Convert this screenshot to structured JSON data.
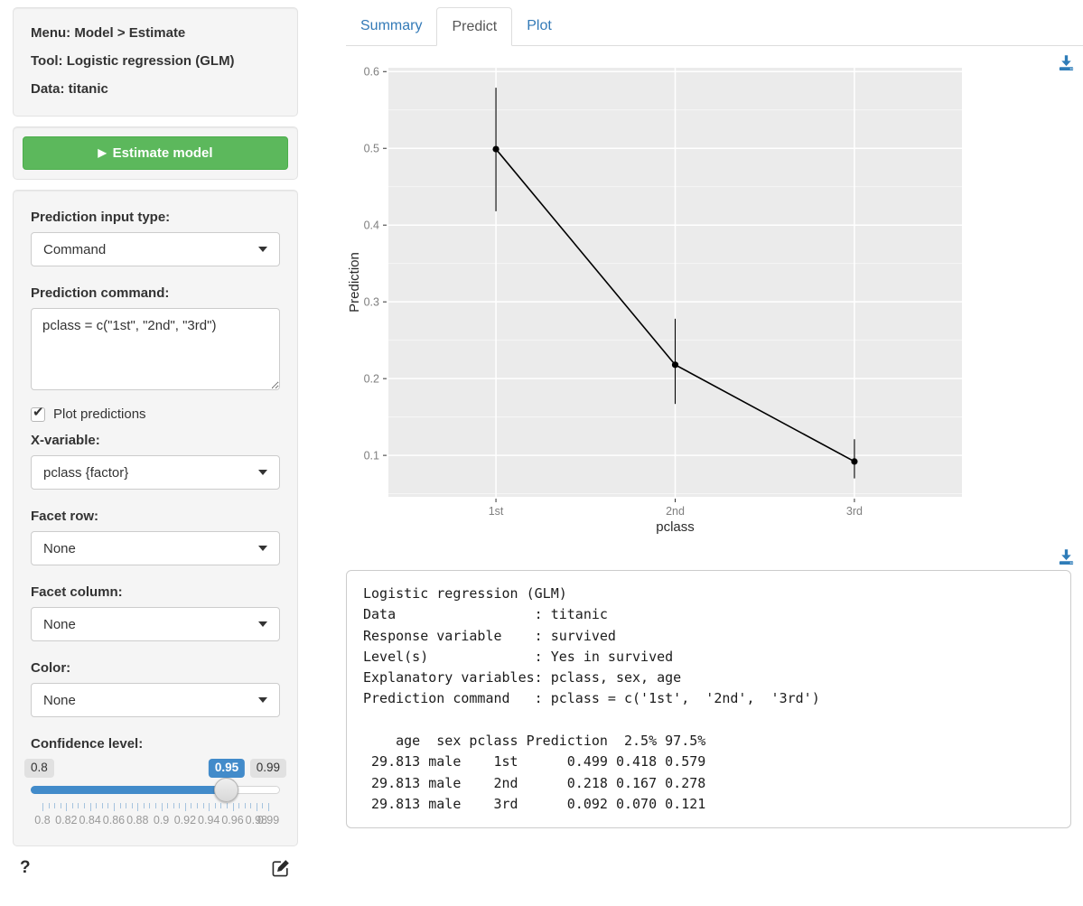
{
  "colors": {
    "accent_blue": "#337ab7",
    "button_green": "#5cb85c",
    "slider_blue": "#428bca",
    "panel_grey": "#ebebeb"
  },
  "sidebar": {
    "header": {
      "menu": "Menu: Model > Estimate",
      "tool": "Tool: Logistic regression (GLM)",
      "data": "Data: titanic"
    },
    "estimate_button": "Estimate model",
    "controls": {
      "input_type": {
        "label": "Prediction input type:",
        "value": "Command"
      },
      "command": {
        "label": "Prediction command:",
        "value": "pclass = c(\"1st\", \"2nd\", \"3rd\")"
      },
      "plot_predictions": {
        "label": "Plot predictions",
        "checked": true
      },
      "x_variable": {
        "label": "X-variable:",
        "value": "pclass {factor}"
      },
      "facet_row": {
        "label": "Facet row:",
        "value": "None"
      },
      "facet_col": {
        "label": "Facet column:",
        "value": "None"
      },
      "color": {
        "label": "Color:",
        "value": "None"
      },
      "conf_level": {
        "label": "Confidence level:",
        "min": 0.8,
        "max": 0.99,
        "value": 0.95,
        "min_label": "0.8",
        "value_label": "0.95",
        "max_label": "0.99",
        "tick_labels": [
          "0.8",
          "0.82",
          "0.84",
          "0.86",
          "0.88",
          "0.9",
          "0.92",
          "0.94",
          "0.96",
          "0.98",
          "0.99"
        ]
      }
    },
    "help_label": "?"
  },
  "icons": {
    "estimate_play": "▶",
    "checkbox_check": "✔",
    "download": "download-icon",
    "edit": "edit-icon"
  },
  "tabs": [
    {
      "label": "Summary",
      "active": false
    },
    {
      "label": "Predict",
      "active": true
    },
    {
      "label": "Plot",
      "active": false
    }
  ],
  "chart_data": {
    "type": "line",
    "x": [
      "1st",
      "2nd",
      "3rd"
    ],
    "series": [
      {
        "name": "Prediction",
        "values": [
          0.499,
          0.218,
          0.092
        ],
        "lower": [
          0.418,
          0.167,
          0.07
        ],
        "upper": [
          0.579,
          0.278,
          0.121
        ]
      }
    ],
    "title": "",
    "xlabel": "pclass",
    "ylabel": "Prediction",
    "yticks": [
      0.1,
      0.2,
      0.3,
      0.4,
      0.5,
      0.6
    ],
    "ylim": [
      0.046,
      0.605
    ],
    "grid": true,
    "legend_position": "none",
    "panel_bg": "#ebebeb"
  },
  "output": {
    "lines": [
      "Logistic regression (GLM)",
      "Data                 : titanic",
      "Response variable    : survived",
      "Level(s)             : Yes in survived",
      "Explanatory variables: pclass, sex, age",
      "Prediction command   : pclass = c('1st',  '2nd',  '3rd')",
      "",
      "    age  sex pclass Prediction  2.5% 97.5%",
      " 29.813 male    1st      0.499 0.418 0.579",
      " 29.813 male    2nd      0.218 0.167 0.278",
      " 29.813 male    3rd      0.092 0.070 0.121"
    ]
  }
}
